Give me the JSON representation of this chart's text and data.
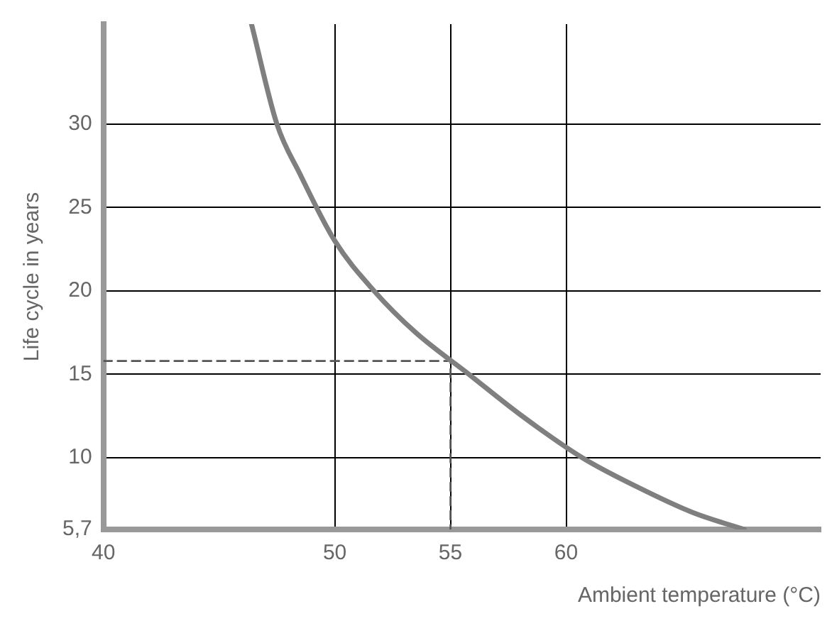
{
  "chart_data": {
    "type": "line",
    "xlabel": "Ambient temperature (°C)",
    "ylabel": "Life cycle in years",
    "series": [
      {
        "color": "#7f7f7f",
        "x": [
          46.4,
          47.5,
          48.5,
          50,
          51.7,
          53.5,
          55.8,
          58,
          60.7,
          63,
          65.5,
          67.7
        ],
        "values": [
          36,
          30,
          27,
          23,
          20,
          17.5,
          15,
          12.6,
          10,
          8.3,
          6.7,
          5.7
        ],
        "line_style": "solid"
      },
      {
        "color": "#555555",
        "x": [
          40,
          55,
          55
        ],
        "values": [
          15.8,
          15.8,
          5.7
        ],
        "line_style": "dashed"
      }
    ],
    "xlim": [
      40,
      71
    ],
    "xticks": [
      40,
      50,
      55,
      60
    ],
    "ylim": [
      5.7,
      36
    ],
    "yticks": [
      {
        "value": 5.7,
        "label": "5,7"
      },
      10,
      15,
      20,
      25,
      30
    ],
    "grid": true,
    "legend": false,
    "marker": "none"
  }
}
